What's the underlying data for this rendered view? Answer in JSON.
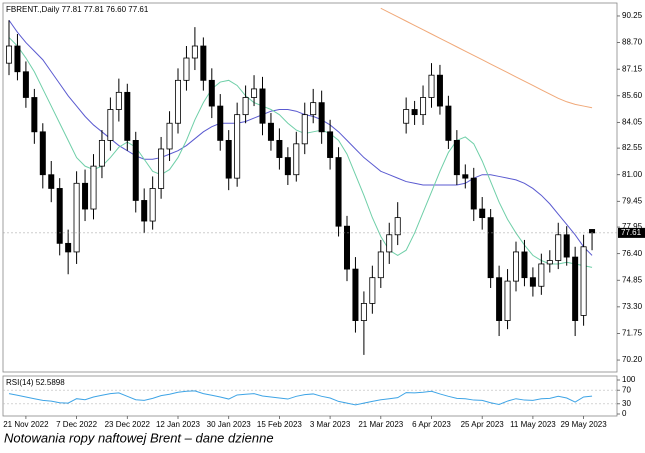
{
  "chart_data": [
    {
      "type": "candlestick",
      "header": "FBRENT.,Daily  77.81 77.81 76.60 77.61",
      "categories": [
        null,
        null,
        "21 Nov 2022",
        null,
        null,
        null,
        null,
        null,
        "7 Dec 2022",
        null,
        null,
        null,
        null,
        null,
        "23 Dec 2022",
        null,
        null,
        null,
        null,
        null,
        "12 Jan 2023",
        null,
        null,
        null,
        null,
        null,
        "30 Jan 2023",
        null,
        null,
        null,
        null,
        null,
        "15 Feb 2023",
        null,
        null,
        null,
        null,
        null,
        "3 Mar 2023",
        null,
        null,
        null,
        null,
        null,
        "21 Mar 2023",
        null,
        null,
        null,
        null,
        null,
        "6 Apr 2023",
        null,
        null,
        null,
        null,
        null,
        "25 Apr 2023",
        null,
        null,
        null,
        null,
        null,
        "11 May 2023",
        null,
        null,
        null,
        null,
        null,
        "29 May 2023",
        null
      ],
      "open": [
        87.5,
        88.5,
        87.0,
        85.5,
        83.5,
        81.0,
        80.2,
        77.0,
        76.5,
        80.5,
        79.0,
        81.5,
        83.0,
        84.8,
        85.8,
        83.0,
        79.5,
        78.3,
        80.2,
        82.5,
        84.0,
        86.5,
        87.8,
        88.5,
        86.5,
        85.0,
        83.0,
        80.8,
        84.5,
        85.5,
        86.0,
        84.0,
        83.0,
        82.0,
        81.0,
        82.8,
        84.5,
        85.2,
        83.5,
        82.0,
        78.0,
        75.5,
        72.5,
        73.5,
        75.0,
        76.5,
        77.5,
        84.0,
        84.8,
        84.5,
        85.5,
        86.8,
        85.0,
        83.0,
        81.0,
        80.8,
        79.0,
        78.5,
        75.0,
        72.5,
        74.8,
        76.5,
        75.0,
        74.5,
        75.8,
        76.0,
        77.5,
        76.2,
        72.8,
        77.81
      ],
      "high": [
        90.0,
        89.2,
        87.6,
        86.0,
        84.0,
        81.8,
        80.8,
        77.8,
        81.2,
        81.3,
        82.2,
        83.6,
        85.5,
        86.6,
        86.3,
        83.5,
        80.2,
        80.9,
        83.2,
        84.7,
        87.2,
        88.5,
        89.6,
        89.0,
        87.2,
        85.7,
        83.6,
        85.2,
        86.2,
        86.8,
        86.7,
        84.6,
        83.7,
        82.6,
        83.5,
        85.2,
        86.0,
        85.9,
        84.2,
        82.6,
        78.6,
        76.2,
        74.2,
        75.7,
        77.2,
        78.2,
        79.4,
        85.5,
        85.3,
        86.2,
        87.5,
        87.4,
        85.6,
        83.6,
        81.6,
        81.4,
        79.7,
        79.0,
        75.7,
        75.5,
        77.1,
        77.2,
        75.6,
        76.4,
        76.6,
        78.2,
        78.0,
        76.8,
        77.5,
        77.81
      ],
      "low": [
        86.8,
        86.5,
        84.9,
        82.8,
        80.2,
        79.4,
        76.3,
        75.2,
        75.8,
        78.3,
        78.4,
        80.8,
        82.4,
        84.1,
        82.4,
        78.8,
        77.6,
        77.8,
        79.6,
        81.8,
        83.4,
        85.9,
        87.1,
        85.9,
        84.3,
        82.4,
        80.1,
        80.3,
        84.0,
        85.0,
        83.3,
        82.4,
        81.3,
        80.4,
        80.6,
        82.2,
        84.0,
        82.8,
        81.3,
        77.4,
        74.8,
        71.8,
        70.5,
        72.9,
        74.4,
        75.8,
        76.9,
        83.4,
        83.9,
        83.9,
        84.9,
        84.5,
        82.5,
        80.4,
        80.2,
        78.3,
        77.8,
        74.4,
        71.6,
        72.0,
        74.2,
        74.5,
        73.9,
        74.0,
        75.3,
        75.5,
        75.7,
        71.6,
        72.2,
        76.6
      ],
      "close": [
        88.5,
        87.0,
        85.5,
        83.5,
        81.0,
        80.2,
        77.0,
        76.5,
        80.5,
        79.0,
        81.5,
        83.0,
        84.8,
        85.8,
        83.0,
        79.5,
        78.3,
        80.2,
        82.5,
        84.0,
        86.5,
        87.8,
        88.5,
        86.5,
        85.0,
        83.0,
        80.8,
        84.5,
        85.5,
        86.0,
        84.0,
        83.0,
        82.0,
        81.0,
        82.8,
        84.5,
        85.2,
        83.5,
        82.0,
        78.0,
        75.5,
        72.5,
        73.5,
        75.0,
        76.5,
        77.5,
        78.5,
        84.8,
        84.5,
        85.5,
        86.8,
        85.0,
        83.0,
        81.0,
        80.8,
        79.0,
        78.5,
        75.0,
        72.5,
        74.8,
        76.5,
        75.0,
        74.5,
        75.8,
        76.0,
        77.5,
        76.2,
        72.5,
        76.8,
        77.61
      ],
      "lines": [
        {
          "color": "#5a5ad0",
          "values": [
            90.0,
            89.3,
            88.7,
            88.2,
            87.7,
            87.0,
            86.3,
            85.6,
            85.0,
            84.4,
            83.9,
            83.5,
            83.1,
            82.7,
            82.4,
            82.1,
            81.9,
            81.9,
            82.0,
            82.2,
            82.4,
            82.7,
            83.1,
            83.5,
            83.8,
            84.0,
            84.0,
            84.0,
            84.1,
            84.3,
            84.5,
            84.7,
            84.8,
            84.8,
            84.7,
            84.5,
            84.4,
            84.2,
            83.9,
            83.5,
            83.0,
            82.5,
            82.0,
            81.6,
            81.2,
            81.0,
            80.8,
            80.6,
            80.5,
            80.4,
            80.4,
            80.4,
            80.4,
            80.4,
            80.5,
            80.8,
            81.0,
            81.0,
            80.9,
            80.8,
            80.7,
            80.5,
            80.2,
            79.8,
            79.3,
            78.7,
            78.1,
            77.5,
            76.8,
            76.3
          ]
        },
        {
          "color": "#6fcfa8",
          "values": [
            89.0,
            88.5,
            87.8,
            87.0,
            86.0,
            85.0,
            84.0,
            83.0,
            82.0,
            81.5,
            81.3,
            81.5,
            82.0,
            82.6,
            82.9,
            82.6,
            81.9,
            81.2,
            81.0,
            81.3,
            82.0,
            83.0,
            84.2,
            85.2,
            86.0,
            86.4,
            86.5,
            86.2,
            85.6,
            85.2,
            85.0,
            84.8,
            84.5,
            84.0,
            83.6,
            83.4,
            83.5,
            83.6,
            83.4,
            83.0,
            82.2,
            81.0,
            79.8,
            78.5,
            77.4,
            76.6,
            76.3,
            76.6,
            77.6,
            78.8,
            80.0,
            81.2,
            82.3,
            83.0,
            83.2,
            82.8,
            81.8,
            80.6,
            79.4,
            78.4,
            77.6,
            76.9,
            76.3,
            76.0,
            75.8,
            75.8,
            75.9,
            75.8,
            75.7,
            75.6
          ]
        },
        {
          "color": "#f0a878",
          "values": [
            null,
            null,
            null,
            null,
            null,
            null,
            null,
            null,
            null,
            null,
            null,
            null,
            null,
            null,
            null,
            null,
            null,
            null,
            null,
            null,
            null,
            null,
            null,
            null,
            null,
            null,
            null,
            null,
            null,
            null,
            null,
            null,
            null,
            null,
            null,
            null,
            null,
            null,
            null,
            null,
            null,
            null,
            null,
            null,
            90.7,
            90.45,
            90.2,
            89.95,
            89.7,
            89.45,
            89.2,
            88.95,
            88.7,
            88.45,
            88.2,
            87.95,
            87.7,
            87.45,
            87.2,
            86.95,
            86.7,
            86.45,
            86.2,
            85.95,
            85.7,
            85.45,
            85.25,
            85.1,
            85.0,
            84.9
          ]
        }
      ],
      "ylim": [
        69.62,
        90.89
      ],
      "yticks": [
        90.25,
        {
          "value": 88.7,
          "label": "88.70"
        },
        87.15,
        {
          "value": 85.6,
          "label": "85.60"
        },
        84.05,
        82.55,
        {
          "value": 81.0,
          "label": "81.00"
        },
        79.45,
        77.95,
        {
          "value": 76.4,
          "label": "76.40"
        },
        74.85,
        {
          "value": 73.3,
          "label": "73.30"
        },
        71.75,
        {
          "value": 70.2,
          "label": "70.20"
        }
      ],
      "last_price": 77.61,
      "up_color": "#ffffff",
      "down_color": "#000000"
    },
    {
      "type": "line",
      "label": "RSI(14) 52.5898",
      "color": "#3ea4e6",
      "values": [
        60,
        55,
        50,
        45,
        40,
        38,
        33,
        32,
        45,
        42,
        50,
        55,
        60,
        62,
        52,
        42,
        40,
        46,
        54,
        58,
        64,
        67,
        68,
        60,
        55,
        50,
        44,
        56,
        58,
        60,
        53,
        50,
        47,
        44,
        52,
        57,
        59,
        52,
        47,
        37,
        32,
        27,
        32,
        37,
        42,
        45,
        48,
        63,
        62,
        64,
        67,
        59,
        52,
        46,
        45,
        41,
        40,
        33,
        28,
        38,
        45,
        41,
        40,
        45,
        46,
        52,
        47,
        35,
        50,
        52.59
      ],
      "ylim": [
        0,
        100
      ],
      "yticks": [
        100,
        70,
        30,
        0
      ]
    }
  ],
  "caption": "Notowania ropy naftowej Brent – dane dzienne"
}
